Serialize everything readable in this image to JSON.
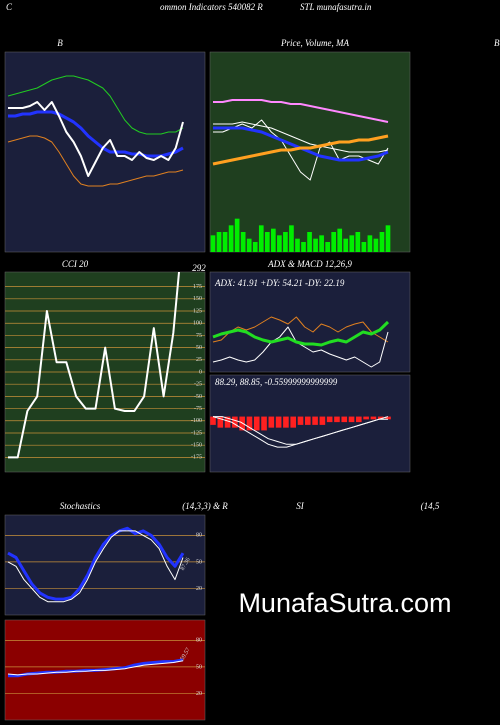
{
  "header": [
    "C",
    "ommon  Indicators 540082  R",
    "STL  munafasutra.in",
    "B"
  ],
  "watermark": "MunafaSutra.com",
  "chart_data": [
    {
      "type": "line",
      "title": "B",
      "background": "#1b1f3b",
      "ylim": [
        0,
        100
      ],
      "series": [
        {
          "color": "#22cc22",
          "line_width": 1,
          "values": [
            78,
            79,
            80,
            81,
            82,
            84,
            86,
            87,
            88,
            88,
            87,
            86,
            84,
            82,
            78,
            72,
            66,
            62,
            60,
            59,
            59,
            59,
            60,
            60,
            62
          ]
        },
        {
          "color": "#2233ff",
          "line_width": 3,
          "values": [
            68,
            68,
            69,
            69,
            70,
            70,
            70,
            69,
            67,
            65,
            62,
            58,
            55,
            52,
            50,
            50,
            50,
            49,
            49,
            48,
            48,
            48,
            49,
            50,
            52
          ]
        },
        {
          "color": "#e08020",
          "line_width": 1,
          "values": [
            55,
            56,
            57,
            58,
            58,
            57,
            55,
            50,
            44,
            38,
            34,
            33,
            33,
            33,
            34,
            34,
            35,
            36,
            37,
            38,
            38,
            39,
            40,
            40,
            41
          ]
        },
        {
          "color": "#ffffff",
          "line_width": 2,
          "values": [
            72,
            72,
            72,
            73,
            75,
            71,
            75,
            68,
            60,
            55,
            48,
            38,
            45,
            52,
            56,
            48,
            48,
            46,
            50,
            47,
            46,
            48,
            46,
            52,
            65
          ]
        }
      ]
    },
    {
      "type": "line",
      "title": "Price, Volume, MA",
      "background": "#1f3f1f",
      "ylim": [
        0,
        100
      ],
      "y2lim": [
        0,
        60
      ],
      "series": [
        {
          "color": "#ff88ff",
          "line_width": 2,
          "values": [
            75,
            75,
            76,
            76,
            76,
            76,
            75,
            75,
            74,
            74,
            73,
            72,
            71,
            70,
            69,
            68,
            67,
            66,
            65
          ]
        },
        {
          "color": "#ffffff",
          "line_width": 1,
          "values": [
            60,
            60,
            62,
            64,
            62,
            66,
            60,
            56,
            48,
            40,
            36,
            52,
            55,
            46,
            48,
            48,
            46,
            44,
            52
          ]
        },
        {
          "color": "#ffffff",
          "line_width": 1,
          "values": [
            64,
            64,
            64,
            65,
            64,
            63,
            62,
            60,
            58,
            56,
            54,
            53,
            52,
            51,
            50,
            50,
            50,
            50,
            51
          ]
        },
        {
          "color": "#2233ff",
          "line_width": 3,
          "values": [
            62,
            62,
            62,
            62,
            61,
            60,
            58,
            56,
            54,
            52,
            50,
            48,
            47,
            46,
            46,
            46,
            47,
            48,
            50
          ]
        },
        {
          "color": "#ffa020",
          "line_width": 3,
          "values": [
            44,
            45,
            46,
            47,
            48,
            49,
            50,
            51,
            51,
            52,
            52,
            53,
            54,
            55,
            55,
            56,
            56,
            57,
            58
          ]
        },
        {
          "color": "#00ee00",
          "kind": "bar",
          "axis": "y2",
          "values": [
            5,
            6,
            6,
            8,
            10,
            6,
            4,
            3,
            8,
            6,
            7,
            5,
            6,
            8,
            4,
            3,
            6,
            4,
            5,
            3,
            6,
            7,
            4,
            5,
            6,
            3,
            5,
            4,
            6,
            8
          ]
        }
      ]
    },
    {
      "type": "line",
      "title": "CCI 20",
      "background": "#1f3f1f",
      "ylim": [
        -205,
        205
      ],
      "grid": true,
      "yticks": [
        175,
        150,
        125,
        100,
        75,
        50,
        25,
        0,
        -25,
        -50,
        -75,
        -100,
        -125,
        -150,
        -175
      ],
      "series": [
        {
          "color": "#ffffff",
          "line_width": 2,
          "label_last": true,
          "values": [
            -175,
            -175,
            -80,
            -50,
            125,
            20,
            20,
            -50,
            -75,
            -75,
            50,
            -75,
            -80,
            -80,
            -50,
            90,
            -50,
            80,
            292
          ]
        }
      ]
    },
    {
      "type": "line",
      "title": "ADX  & MACD 12,26,9",
      "annotation": "ADX: 41.91 +DY: 54.21 -DY: 22.19",
      "background": "#1b1f3b",
      "ylim": [
        0,
        100
      ],
      "series": [
        {
          "color": "#e08020",
          "line_width": 1,
          "values": [
            30,
            32,
            40,
            45,
            42,
            45,
            50,
            55,
            52,
            48,
            55,
            45,
            40,
            48,
            45,
            40,
            45,
            48,
            50,
            40,
            35,
            30
          ]
        },
        {
          "color": "#ffffff",
          "line_width": 1,
          "values": [
            10,
            12,
            15,
            12,
            10,
            12,
            20,
            30,
            35,
            45,
            30,
            25,
            20,
            22,
            18,
            15,
            12,
            15,
            10,
            5,
            10,
            40
          ]
        },
        {
          "color": "#22dd22",
          "line_width": 3,
          "values": [
            35,
            38,
            40,
            42,
            40,
            35,
            32,
            30,
            32,
            34,
            30,
            28,
            28,
            27,
            30,
            32,
            30,
            35,
            40,
            38,
            42,
            50
          ]
        }
      ]
    },
    {
      "type": "line",
      "annotation": "88.29, 88.85, -0.55999999999999",
      "background": "#1b1f3b",
      "ylim": [
        -20,
        15
      ],
      "series": [
        {
          "color": "#ff2020",
          "kind": "bar",
          "values": [
            -3,
            -4,
            -4,
            -4,
            -5,
            -5,
            -5,
            -5,
            -4,
            -4,
            -4,
            -4,
            -3,
            -3,
            -3,
            -3,
            -2,
            -2,
            -2,
            -2,
            -2,
            -1,
            -1,
            -1,
            -1
          ]
        },
        {
          "color": "#ffffff",
          "line_width": 1,
          "values": [
            0,
            -1,
            -2,
            -4,
            -6,
            -8,
            -10,
            -11,
            -11,
            -10,
            -9,
            -8,
            -7,
            -6,
            -5,
            -4,
            -3,
            -2,
            -1,
            0
          ]
        },
        {
          "color": "#ffffff",
          "line_width": 1,
          "values": [
            0,
            0,
            -1,
            -2,
            -4,
            -6,
            -8,
            -9,
            -10,
            -10,
            -9,
            -8,
            -7,
            -6,
            -5,
            -4,
            -3,
            -2,
            -1,
            -1
          ]
        }
      ]
    },
    {
      "type": "line",
      "title": "Stochastics",
      "subtitle": "(14,3,3) & R",
      "annotation": "87.36",
      "background": "#1b1f3b",
      "ylim": [
        -10,
        103
      ],
      "grid": true,
      "yticks": [
        80,
        50,
        20
      ],
      "series": [
        {
          "color": "#2233ff",
          "line_width": 3,
          "values": [
            60,
            55,
            40,
            25,
            15,
            10,
            8,
            8,
            10,
            20,
            35,
            55,
            70,
            80,
            85,
            88,
            82,
            85,
            80,
            70,
            55,
            45,
            60
          ]
        },
        {
          "color": "#ffffff",
          "line_width": 1,
          "values": [
            50,
            45,
            30,
            20,
            10,
            5,
            5,
            5,
            8,
            15,
            30,
            50,
            65,
            78,
            85,
            85,
            85,
            80,
            75,
            65,
            45,
            30,
            55
          ]
        }
      ]
    },
    {
      "type": "line",
      "title": "SI",
      "subtitle": "(14,5",
      "annotation": "59.57",
      "background": "#8b0000",
      "ylim": [
        -10,
        103
      ],
      "grid": true,
      "yticks": [
        80,
        50,
        20
      ],
      "series": [
        {
          "color": "#2233ff",
          "line_width": 3,
          "values": [
            40,
            40,
            42,
            43,
            44,
            44,
            45,
            45,
            46,
            46,
            47,
            48,
            49,
            52,
            54,
            55,
            56,
            56,
            58
          ]
        },
        {
          "color": "#ffffff",
          "line_width": 1,
          "values": [
            42,
            41,
            42,
            42,
            43,
            44,
            44,
            45,
            45,
            46,
            46,
            47,
            48,
            50,
            52,
            53,
            54,
            55,
            57
          ]
        }
      ]
    }
  ]
}
